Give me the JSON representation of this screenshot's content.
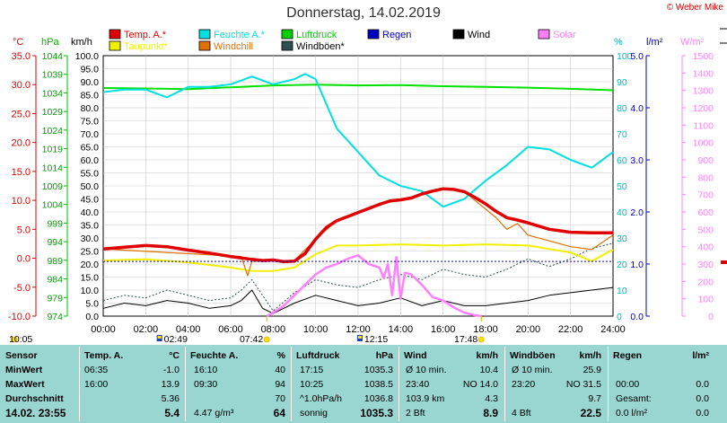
{
  "title": "Donnerstag, 14.02.2019",
  "copyright": "© Weber Mike",
  "legend": [
    {
      "label": "Temp. A.*",
      "color": "#e00000"
    },
    {
      "label": "Feuchte A.*",
      "color": "#00e0e0"
    },
    {
      "label": "Luftdruck",
      "color": "#00d000"
    },
    {
      "label": "Regen",
      "color": "#0000c0"
    },
    {
      "label": "Wind",
      "color": "#000000"
    },
    {
      "label": "Solar",
      "color": "#ff80ff"
    },
    {
      "label": "Taupunkt*",
      "color": "#f0f000"
    },
    {
      "label": "Windchill",
      "color": "#e07000"
    },
    {
      "label": "Windböen*",
      "color": "#305050"
    }
  ],
  "axes": {
    "temp_unit": "°C",
    "press_unit": "hPa",
    "wind_unit": "km/h",
    "hum_unit": "%",
    "rain_unit": "l/m²",
    "solar_unit": "W/m²",
    "temp_ticks": [
      "35.0",
      "30.0",
      "25.0",
      "20.0",
      "15.0",
      "10.0",
      "5.0",
      "0.0",
      "-5.0",
      "-10.0"
    ],
    "press_ticks": [
      "1044",
      "1039",
      "1034",
      "1029",
      "1024",
      "1019",
      "1014",
      "1009",
      "1004",
      "999",
      "994",
      "989",
      "984",
      "979",
      "974"
    ],
    "wind_ticks": [
      "100.0",
      "95.0",
      "90.0",
      "85.0",
      "80.0",
      "75.0",
      "70.0",
      "65.0",
      "60.0",
      "55.0",
      "50.0",
      "45.0",
      "40.0",
      "35.0",
      "30.0",
      "25.0",
      "20.0",
      "15.0",
      "10.0",
      "5.0",
      "0.0"
    ],
    "hum_ticks": [
      "100",
      "90",
      "80",
      "70",
      "60",
      "50",
      "40",
      "30",
      "20",
      "10",
      "0"
    ],
    "rain_ticks": [
      "5.0",
      "4.0",
      "3.0",
      "2.0",
      "1.0",
      "0.0"
    ],
    "solar_ticks": [
      "1500",
      "1400",
      "1300",
      "1200",
      "1100",
      "1000",
      "900",
      "800",
      "700",
      "600",
      "500",
      "400",
      "300",
      "200",
      "100",
      "0"
    ],
    "time_ticks": [
      "00:00",
      "02:00",
      "04:00",
      "06:00",
      "08:00",
      "10:00",
      "12:00",
      "14:00",
      "16:00",
      "18:00",
      "20:00",
      "22:00",
      "24:00"
    ]
  },
  "sun_marks": {
    "sunrise_icon_time": "02:49",
    "sunrise": "07:42",
    "noon_icon_time": "12:15",
    "sunset": "17:48",
    "left_time": "10:05"
  },
  "chart_data": {
    "type": "line",
    "x_unit": "hours",
    "xlim": [
      0,
      24
    ],
    "series": [
      {
        "name": "Temp. A.*",
        "axis": "°C",
        "x": [
          0,
          1,
          2,
          3,
          4,
          5,
          6,
          7,
          7.5,
          8,
          8.5,
          9,
          9.5,
          10,
          10.5,
          11,
          11.5,
          12,
          12.5,
          13,
          13.5,
          14,
          14.5,
          15,
          15.5,
          16,
          16.5,
          17,
          17.5,
          18,
          18.5,
          19,
          19.5,
          20,
          21,
          22,
          23,
          24
        ],
        "values": [
          1.6,
          1.9,
          2.2,
          2.0,
          1.4,
          0.9,
          0.3,
          -0.2,
          -0.4,
          -0.3,
          -0.6,
          -0.5,
          0.8,
          3.3,
          5.3,
          6.5,
          7.2,
          7.9,
          8.6,
          9.3,
          9.9,
          10.1,
          10.4,
          11.1,
          11.6,
          12.0,
          11.9,
          11.5,
          10.5,
          9.4,
          8.1,
          7.0,
          6.6,
          6.1,
          5.0,
          4.5,
          4.4,
          4.4
        ]
      },
      {
        "name": "Taupunkt*",
        "axis": "°C",
        "x": [
          0,
          2,
          4,
          6,
          7,
          8,
          9,
          10,
          11,
          12,
          14,
          16,
          18,
          20,
          22,
          23,
          24
        ],
        "values": [
          -0.4,
          -0.2,
          -0.7,
          -1.6,
          -2.2,
          -2.2,
          -1.6,
          0.7,
          2.2,
          2.2,
          2.4,
          2.2,
          2.4,
          2.2,
          1.0,
          -0.5,
          1.5
        ]
      },
      {
        "name": "Windchill",
        "axis": "°C",
        "x": [
          0,
          6.5,
          6.8,
          7,
          8,
          9,
          10,
          11,
          12,
          13,
          14,
          15,
          16,
          17,
          18,
          18.5,
          19,
          19.5,
          20,
          21,
          22,
          23,
          24
        ],
        "values": [
          1.6,
          0.3,
          -3.0,
          -0.5,
          -0.5,
          -0.4,
          3.3,
          6.5,
          7.9,
          9.3,
          10.1,
          11.1,
          12.0,
          11.5,
          8.5,
          7.0,
          5.0,
          6.0,
          4.0,
          3.0,
          2.0,
          1.5,
          4.0
        ]
      },
      {
        "name": "Feuchte A.*",
        "axis": "%",
        "x": [
          0,
          1,
          2,
          3,
          4,
          5,
          6,
          7,
          8,
          9,
          9.5,
          10,
          11,
          12,
          13,
          14,
          15,
          16,
          17,
          18,
          19,
          20,
          21,
          22,
          23,
          24
        ],
        "values": [
          86,
          87,
          87,
          84,
          88,
          88,
          89,
          92,
          89,
          91,
          93,
          91,
          72,
          63,
          54,
          50,
          48,
          42,
          45,
          52,
          58,
          65,
          64,
          60,
          57,
          63
        ]
      },
      {
        "name": "Luftdruck",
        "axis": "hPa",
        "x": [
          0,
          2,
          4,
          6,
          8,
          10,
          12,
          14,
          16,
          18,
          20,
          22,
          24
        ],
        "values": [
          1035.3,
          1035.2,
          1035.0,
          1035.5,
          1036.0,
          1036.2,
          1036.0,
          1036.1,
          1035.8,
          1035.6,
          1035.4,
          1035.1,
          1034.7
        ]
      },
      {
        "name": "Wind",
        "axis": "km/h",
        "x": [
          0,
          1,
          2,
          3,
          4,
          5,
          6,
          6.5,
          7,
          7.5,
          8,
          9,
          10,
          11,
          12,
          13,
          14,
          15,
          16,
          17,
          18,
          19,
          20,
          21,
          22,
          23,
          24
        ],
        "values": [
          3,
          5,
          4,
          6,
          5,
          3,
          4,
          6,
          10,
          3,
          1,
          5,
          8,
          6,
          4,
          5,
          7,
          4,
          6,
          4,
          4,
          5,
          6,
          8,
          9,
          10,
          11
        ]
      },
      {
        "name": "Windböen*",
        "axis": "km/h",
        "x": [
          0,
          1,
          2,
          3,
          4,
          5,
          6,
          6.5,
          7,
          7.5,
          8,
          9,
          10,
          11,
          12,
          13,
          14,
          15,
          16,
          17,
          18,
          19,
          20,
          21,
          22,
          23,
          24
        ],
        "values": [
          6,
          8,
          7,
          10,
          8,
          6,
          7,
          10,
          14,
          8,
          2,
          9,
          14,
          12,
          11,
          14,
          16,
          14,
          18,
          16,
          15,
          18,
          22,
          19,
          22,
          26,
          28
        ]
      },
      {
        "name": "Solar",
        "axis": "W/m²",
        "x": [
          7.7,
          8,
          8.5,
          9,
          9.5,
          10,
          10.5,
          11,
          11.5,
          12,
          12.5,
          13,
          13.2,
          13.4,
          13.6,
          13.8,
          14,
          14.2,
          14.5,
          15,
          15.5,
          16,
          16.5,
          17,
          17.5,
          17.8
        ],
        "values": [
          0,
          20,
          60,
          120,
          180,
          240,
          280,
          300,
          330,
          350,
          300,
          280,
          220,
          300,
          120,
          340,
          100,
          250,
          240,
          180,
          110,
          90,
          50,
          20,
          5,
          0
        ]
      }
    ],
    "reference_lines": [
      {
        "name": "Regen",
        "axis": "l/m²",
        "value": 1.05
      }
    ]
  },
  "table": {
    "headers": {
      "sensor": "Sensor",
      "temp": "Temp. A.",
      "temp_unit": "°C",
      "hum": "Feuchte A.",
      "hum_unit": "%",
      "press": "Luftdruck",
      "press_unit": "hPa",
      "wind": "Wind",
      "wind_unit": "km/h",
      "gust": "Windböen",
      "gust_unit": "km/h",
      "rain": "Regen",
      "rain_unit": "l/m²"
    },
    "rows": [
      {
        "label": "MinWert",
        "temp_time": "06:35",
        "temp_val": "-1.0",
        "hum_time": "16:10",
        "hum_val": "40",
        "press_time": "17:15",
        "press_val": "1035.3",
        "wind_a": "Ø 10 min.",
        "wind_b": "10.4",
        "gust_a": "Ø 10 min.",
        "gust_b": "25.9",
        "rain_a": "",
        "rain_b": ""
      },
      {
        "label": "MaxWert",
        "temp_time": "16:00",
        "temp_val": "13.9",
        "hum_time": "09:30",
        "hum_val": "94",
        "press_time": "10:25",
        "press_val": "1038.5",
        "wind_a": "23:40",
        "wind_b": "NO 14.0",
        "gust_a": "23:20",
        "gust_b": "NO 31.5",
        "rain_a": "00:00",
        "rain_b": "0.0"
      },
      {
        "label": "Durchschnitt",
        "temp_time": "",
        "temp_val": "5.36",
        "hum_time": "",
        "hum_val": "70",
        "press_time": "^1.0hPa/h",
        "press_val": "1036.8",
        "wind_a": "103.9 km",
        "wind_b": "4.3",
        "gust_a": "",
        "gust_b": "9.7",
        "rain_a": "Gesamt:",
        "rain_b": "0.0"
      },
      {
        "label": "14.02. 23:55",
        "temp_time": "",
        "temp_val": "5.4",
        "hum_time": "4.47 g/m³",
        "hum_val": "64",
        "press_time": "sonnig",
        "press_val": "1035.3",
        "wind_a": "2 Bft",
        "wind_b": "8.9",
        "gust_a": "4 Bft",
        "gust_b": "22.5",
        "rain_a": "0.0 l/m²",
        "rain_b": "0.0"
      }
    ]
  }
}
